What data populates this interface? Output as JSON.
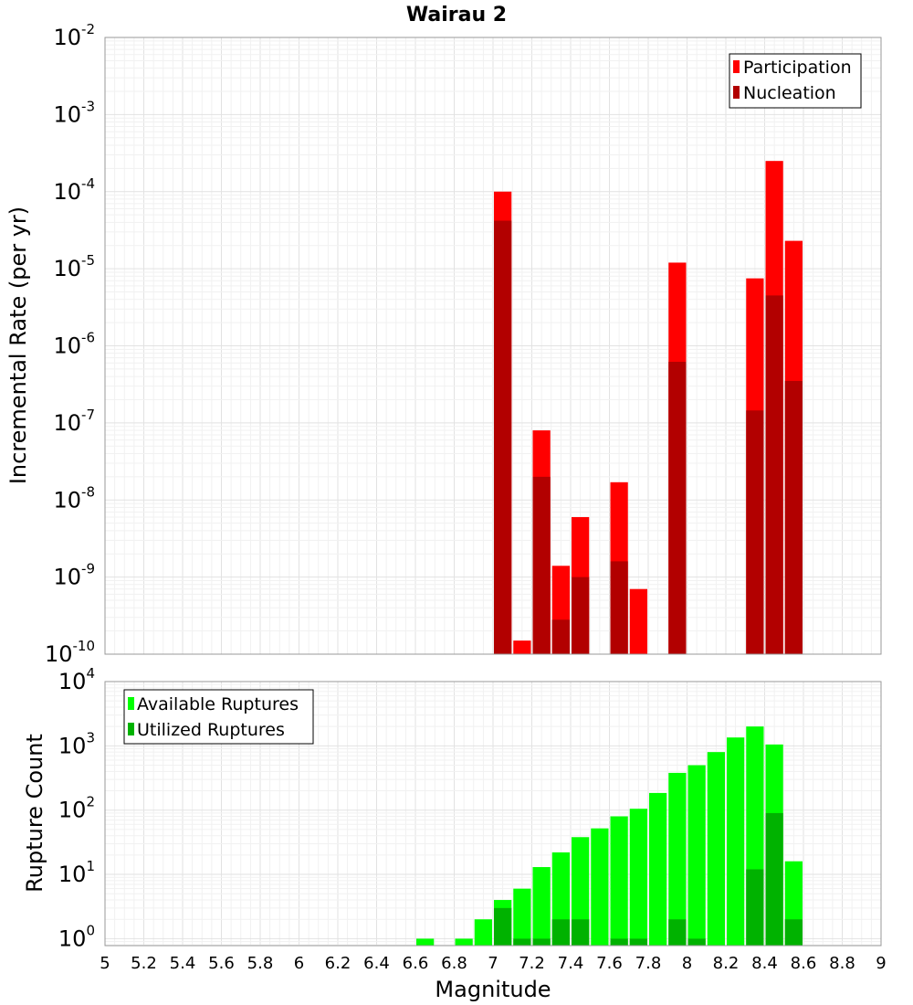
{
  "chart_data": [
    {
      "type": "bar",
      "title": "Wairau 2",
      "ylabel": "Incremental Rate (per yr)",
      "xlabel": "",
      "xlim": [
        5,
        9
      ],
      "ylim": [
        1e-10,
        0.01
      ],
      "y_scale": "log",
      "bar_width": 0.1,
      "legend_position": "top-right",
      "y_ticks": [
        {
          "base": "10",
          "exp": "-10",
          "value": 1e-10
        },
        {
          "base": "10",
          "exp": "-9",
          "value": 1e-09
        },
        {
          "base": "10",
          "exp": "-8",
          "value": 1e-08
        },
        {
          "base": "10",
          "exp": "-7",
          "value": 1e-07
        },
        {
          "base": "10",
          "exp": "-6",
          "value": 1e-06
        },
        {
          "base": "10",
          "exp": "-5",
          "value": 1e-05
        },
        {
          "base": "10",
          "exp": "-4",
          "value": 0.0001
        },
        {
          "base": "10",
          "exp": "-3",
          "value": 0.001
        },
        {
          "base": "10",
          "exp": "-2",
          "value": 0.01
        }
      ],
      "series": [
        {
          "name": "Participation",
          "color": "#ff0000",
          "x": [
            7.05,
            7.15,
            7.25,
            7.35,
            7.45,
            7.65,
            7.75,
            7.95,
            8.35,
            8.45,
            8.55
          ],
          "values": [
            0.0001,
            1.5e-10,
            8e-08,
            1.4e-09,
            6e-09,
            1.7e-08,
            7e-10,
            1.2e-05,
            7.5e-06,
            0.00025,
            2.3e-05
          ]
        },
        {
          "name": "Nucleation",
          "color": "#b20000",
          "x": [
            7.05,
            7.25,
            7.35,
            7.45,
            7.65,
            7.95,
            8.35,
            8.45,
            8.55
          ],
          "values": [
            4.2e-05,
            2e-08,
            2.8e-10,
            1e-09,
            1.6e-09,
            6.2e-07,
            1.45e-07,
            4.5e-06,
            3.5e-07
          ]
        }
      ]
    },
    {
      "type": "bar",
      "title": "",
      "ylabel": "Rupture Count",
      "xlabel": "Magnitude",
      "xlim": [
        5,
        9
      ],
      "ylim": [
        0.78,
        10000
      ],
      "y_scale": "log",
      "bar_width": 0.1,
      "legend_position": "top-left",
      "x_ticks": [
        "5",
        "5.2",
        "5.4",
        "5.6",
        "5.8",
        "6",
        "6.2",
        "6.4",
        "6.6",
        "6.8",
        "7",
        "7.2",
        "7.4",
        "7.6",
        "7.8",
        "8",
        "8.2",
        "8.4",
        "8.6",
        "8.8",
        "9"
      ],
      "y_ticks": [
        {
          "base": "10",
          "exp": "0",
          "value": 1
        },
        {
          "base": "10",
          "exp": "1",
          "value": 10
        },
        {
          "base": "10",
          "exp": "2",
          "value": 100
        },
        {
          "base": "10",
          "exp": "3",
          "value": 1000
        },
        {
          "base": "10",
          "exp": "4",
          "value": 10000
        }
      ],
      "series": [
        {
          "name": "Available Ruptures",
          "color": "#00ff00",
          "x": [
            6.65,
            6.85,
            6.95,
            7.05,
            7.15,
            7.25,
            7.35,
            7.45,
            7.55,
            7.65,
            7.75,
            7.85,
            7.95,
            8.05,
            8.15,
            8.25,
            8.35,
            8.45,
            8.55
          ],
          "values": [
            1,
            1,
            2,
            4,
            6,
            13,
            22,
            38,
            52,
            80,
            105,
            185,
            380,
            500,
            800,
            1350,
            2000,
            1050,
            16
          ]
        },
        {
          "name": "Utilized Ruptures",
          "color": "#00b200",
          "x": [
            7.05,
            7.15,
            7.25,
            7.35,
            7.45,
            7.65,
            7.75,
            7.95,
            8.05,
            8.35,
            8.45,
            8.55
          ],
          "values": [
            3,
            1,
            1,
            2,
            2,
            1,
            1,
            2,
            1,
            12,
            90,
            2
          ]
        }
      ]
    }
  ]
}
